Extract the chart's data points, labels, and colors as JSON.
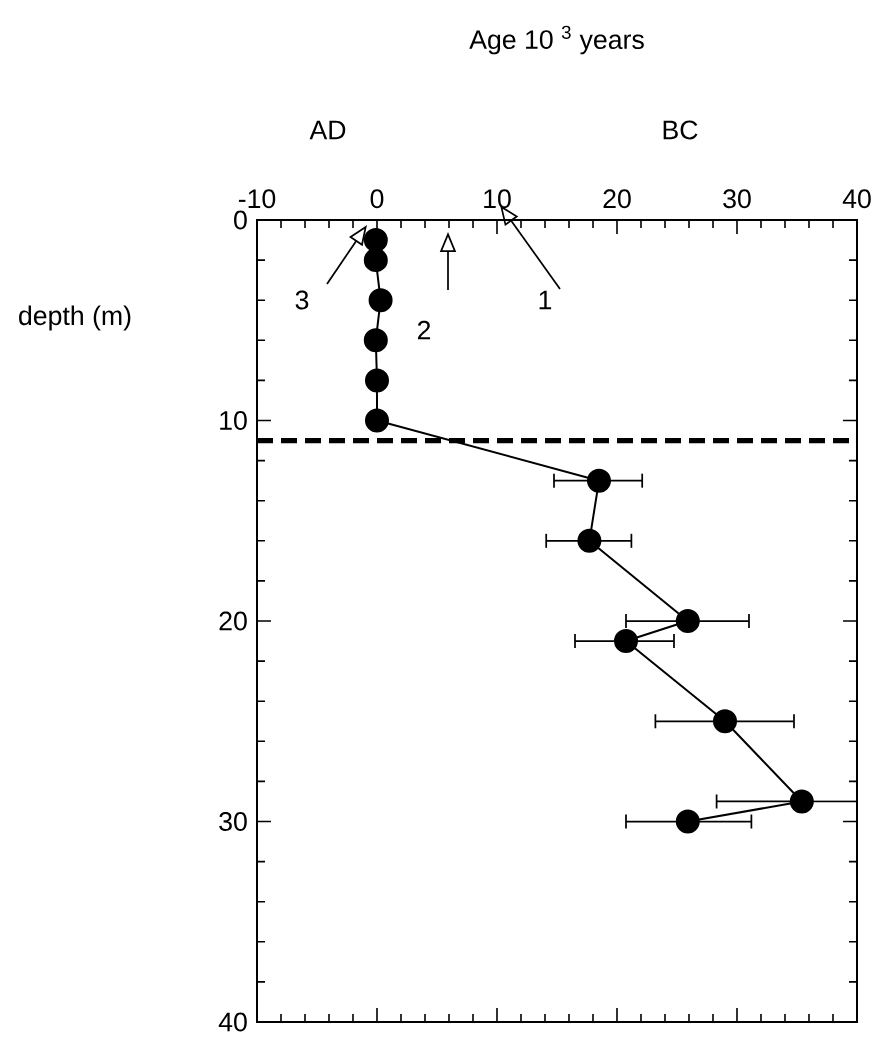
{
  "chart_data": {
    "type": "line",
    "ylabel": "depth (m)",
    "x": [
      -0.1,
      -0.1,
      0.3,
      -0.1,
      0,
      0,
      18.5,
      17.7,
      25.9,
      20.75,
      29,
      35.4,
      25.9
    ],
    "series": [
      {
        "color": "#000000",
        "values": [
          1,
          2,
          4,
          6,
          8,
          10,
          13,
          16,
          20,
          21,
          25,
          29,
          30
        ],
        "xerrors": [
          null,
          null,
          null,
          null,
          null,
          null,
          [
            14.75,
            22.1
          ],
          [
            14.1,
            21.2
          ],
          [
            20.75,
            31
          ],
          [
            16.5,
            24.75
          ],
          [
            23.2,
            34.75
          ],
          [
            28.3,
            40
          ],
          [
            20.75,
            31.2
          ]
        ]
      }
    ],
    "marker": "circle",
    "line_style": "solid",
    "grid": false,
    "xlim": [
      -10,
      40
    ],
    "xticks": [
      -10,
      0,
      10,
      20,
      30,
      40
    ],
    "ylim": [
      40,
      0
    ],
    "yticks": [
      0,
      10,
      20,
      30,
      40
    ],
    "ref_lines": [
      {
        "axis": "y",
        "value": 11,
        "line_style": "dashed",
        "color": "#000000"
      }
    ],
    "annotations": [
      "Age 10 $^{3}$ years",
      "AD",
      "BC",
      "1",
      "2",
      "3"
    ]
  }
}
